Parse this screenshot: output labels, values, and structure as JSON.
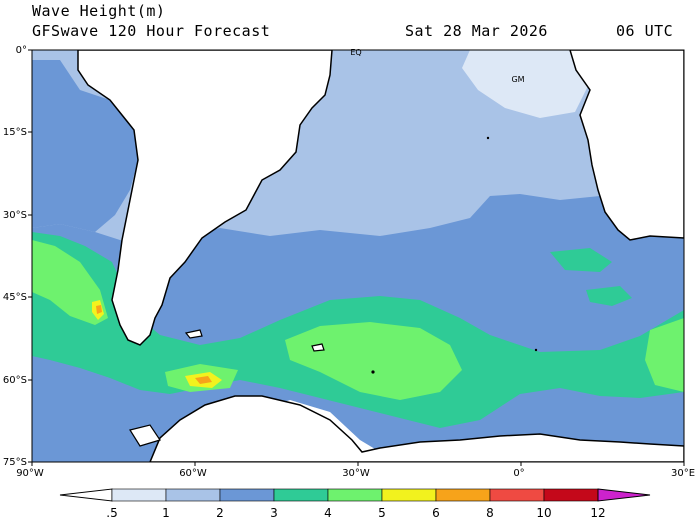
{
  "title": {
    "line1": "Wave Height(m)",
    "line2": "GFSwave 120 Hour Forecast",
    "date": "Sat 28 Mar 2026",
    "time": "06 UTC"
  },
  "map": {
    "lat_labels": [
      "0°",
      "15°S",
      "30°S",
      "45°S",
      "60°S",
      "75°S"
    ],
    "lon_labels": [
      "90°W",
      "60°W",
      "30°W",
      "0°",
      "30°E"
    ],
    "annotations": {
      "equator": "EQ",
      "greenwich_meridian": "GM"
    }
  },
  "legend": {
    "levels": [
      ".5",
      "1",
      "2",
      "3",
      "4",
      "5",
      "6",
      "8",
      "10",
      "12"
    ],
    "colors": [
      "#ffffff",
      "#dde8f6",
      "#a9c3e7",
      "#6b97d6",
      "#2fcb96",
      "#6ef26e",
      "#f2f21e",
      "#f7a31a",
      "#ef4a42",
      "#c4081a",
      "#cc22cc"
    ]
  }
}
